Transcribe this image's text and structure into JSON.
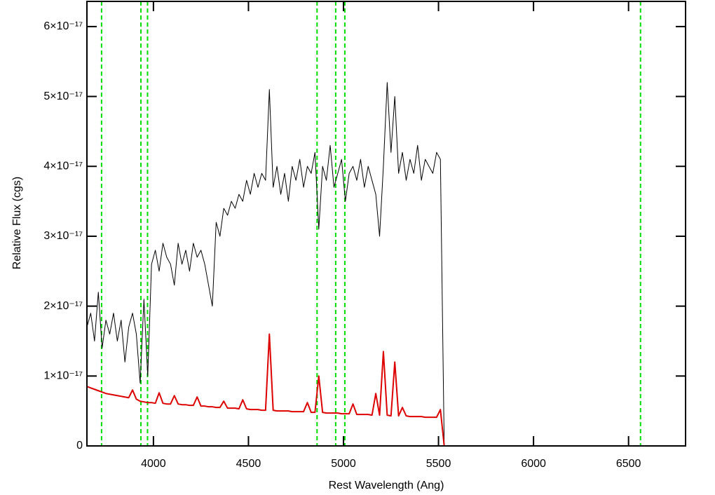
{
  "chart_data": {
    "type": "line",
    "xlabel": "Rest Wavelength (Ang)",
    "ylabel": "Relative Flux (cgs)",
    "xlim": [
      3650,
      6800
    ],
    "ylim": [
      0,
      6.36e-17
    ],
    "xticks": [
      4000,
      4500,
      5000,
      5500,
      6000,
      6500
    ],
    "yticks": [
      0,
      {
        "value": 1e-17,
        "label": "1×10⁻¹⁷"
      },
      {
        "value": 2e-17,
        "label": "2×10⁻¹⁷"
      },
      {
        "value": 3e-17,
        "label": "3×10⁻¹⁷"
      },
      {
        "value": 4e-17,
        "label": "4×10⁻¹⁷"
      },
      {
        "value": 5e-17,
        "label": "5×10⁻¹⁷"
      },
      {
        "value": 6e-17,
        "label": "6×10⁻¹⁷"
      }
    ],
    "vlines": {
      "color": "#00dd00",
      "x": [
        3727,
        3934,
        3969,
        4861,
        4959,
        5007,
        6563
      ]
    },
    "x": [
      3650,
      3670,
      3690,
      3710,
      3730,
      3750,
      3770,
      3790,
      3810,
      3830,
      3850,
      3870,
      3890,
      3910,
      3930,
      3950,
      3970,
      3990,
      4010,
      4030,
      4050,
      4070,
      4090,
      4110,
      4130,
      4150,
      4170,
      4190,
      4210,
      4230,
      4250,
      4270,
      4290,
      4310,
      4330,
      4350,
      4370,
      4390,
      4410,
      4430,
      4450,
      4470,
      4490,
      4510,
      4530,
      4550,
      4570,
      4590,
      4610,
      4630,
      4650,
      4670,
      4690,
      4710,
      4730,
      4750,
      4770,
      4790,
      4810,
      4830,
      4850,
      4870,
      4890,
      4910,
      4930,
      4950,
      4970,
      4990,
      5010,
      5030,
      5050,
      5070,
      5090,
      5110,
      5130,
      5150,
      5170,
      5190,
      5210,
      5230,
      5250,
      5270,
      5290,
      5310,
      5330,
      5350,
      5370,
      5390,
      5410,
      5430,
      5450,
      5470,
      5490,
      5510,
      5530,
      6800
    ],
    "series": [
      {
        "color": "#000000",
        "values": [
          1.7e-17,
          1.9e-17,
          1.5e-17,
          2.2e-17,
          1.4e-17,
          1.8e-17,
          1.6e-17,
          1.9e-17,
          1.5e-17,
          1.8e-17,
          1.2e-17,
          1.7e-17,
          1.9e-17,
          1.6e-17,
          9e-18,
          2.1e-17,
          1e-17,
          2.6e-17,
          2.8e-17,
          2.5e-17,
          2.9e-17,
          2.7e-17,
          2.6e-17,
          2.3e-17,
          2.9e-17,
          2.6e-17,
          2.8e-17,
          2.5e-17,
          2.9e-17,
          2.7e-17,
          2.8e-17,
          2.6e-17,
          2.3e-17,
          2e-17,
          3.2e-17,
          3e-17,
          3.4e-17,
          3.3e-17,
          3.5e-17,
          3.4e-17,
          3.6e-17,
          3.5e-17,
          3.8e-17,
          3.6e-17,
          3.9e-17,
          3.7e-17,
          3.9e-17,
          3.8e-17,
          5.1e-17,
          3.7e-17,
          4e-17,
          3.6e-17,
          3.9e-17,
          3.5e-17,
          4e-17,
          3.8e-17,
          4.1e-17,
          3.7e-17,
          4e-17,
          3.9e-17,
          4.2e-17,
          3.1e-17,
          4e-17,
          3.8e-17,
          4.3e-17,
          3.7e-17,
          3.9e-17,
          4.1e-17,
          3.5e-17,
          3.9e-17,
          4e-17,
          3.8e-17,
          4.1e-17,
          3.7e-17,
          4e-17,
          3.8e-17,
          3.6e-17,
          3e-17,
          4e-17,
          5.2e-17,
          4.2e-17,
          5e-17,
          3.9e-17,
          4.2e-17,
          3.8e-17,
          4.1e-17,
          3.9e-17,
          4.3e-17,
          3.8e-17,
          4.1e-17,
          4e-17,
          3.9e-17,
          4.2e-17,
          4.1e-17,
          0,
          0
        ]
      },
      {
        "color": "#dd0000",
        "values": [
          8.5e-18,
          8.3e-18,
          8.1e-18,
          7.9e-18,
          7.7e-18,
          7.5e-18,
          7.4e-18,
          7.3e-18,
          7.2e-18,
          7.1e-18,
          7e-18,
          6.9e-18,
          8e-18,
          6.7e-18,
          6.4e-18,
          6.3e-18,
          6.2e-18,
          6.2e-18,
          6.1e-18,
          7.6e-18,
          6.1e-18,
          6e-18,
          6e-18,
          7.2e-18,
          6e-18,
          5.9e-18,
          5.9e-18,
          5.8e-18,
          5.8e-18,
          7e-18,
          5.7e-18,
          5.7e-18,
          5.6e-18,
          5.6e-18,
          5.5e-18,
          5.5e-18,
          6.4e-18,
          5.4e-18,
          5.4e-18,
          5.4e-18,
          5.3e-18,
          6.6e-18,
          5.3e-18,
          5.2e-18,
          5.2e-18,
          5.2e-18,
          5.1e-18,
          5.1e-18,
          1.6e-17,
          5.1e-18,
          5e-18,
          5e-18,
          5e-18,
          5e-18,
          4.9e-18,
          4.9e-18,
          4.9e-18,
          4.9e-18,
          6.2e-18,
          4.8e-18,
          4.8e-18,
          1e-17,
          4.8e-18,
          4.7e-18,
          4.7e-18,
          4.7e-18,
          4.7e-18,
          4.6e-18,
          4.6e-18,
          4.6e-18,
          6e-18,
          4.5e-18,
          4.5e-18,
          4.5e-18,
          4.5e-18,
          4.4e-18,
          7.5e-18,
          4.4e-18,
          1.35e-17,
          4.4e-18,
          4.3e-18,
          1.2e-17,
          4.3e-18,
          5.5e-18,
          4.3e-18,
          4.2e-18,
          4.2e-18,
          4.2e-18,
          4.2e-18,
          4.1e-18,
          4.1e-18,
          4.1e-18,
          4.1e-18,
          5.2e-18,
          0,
          0
        ]
      }
    ]
  }
}
